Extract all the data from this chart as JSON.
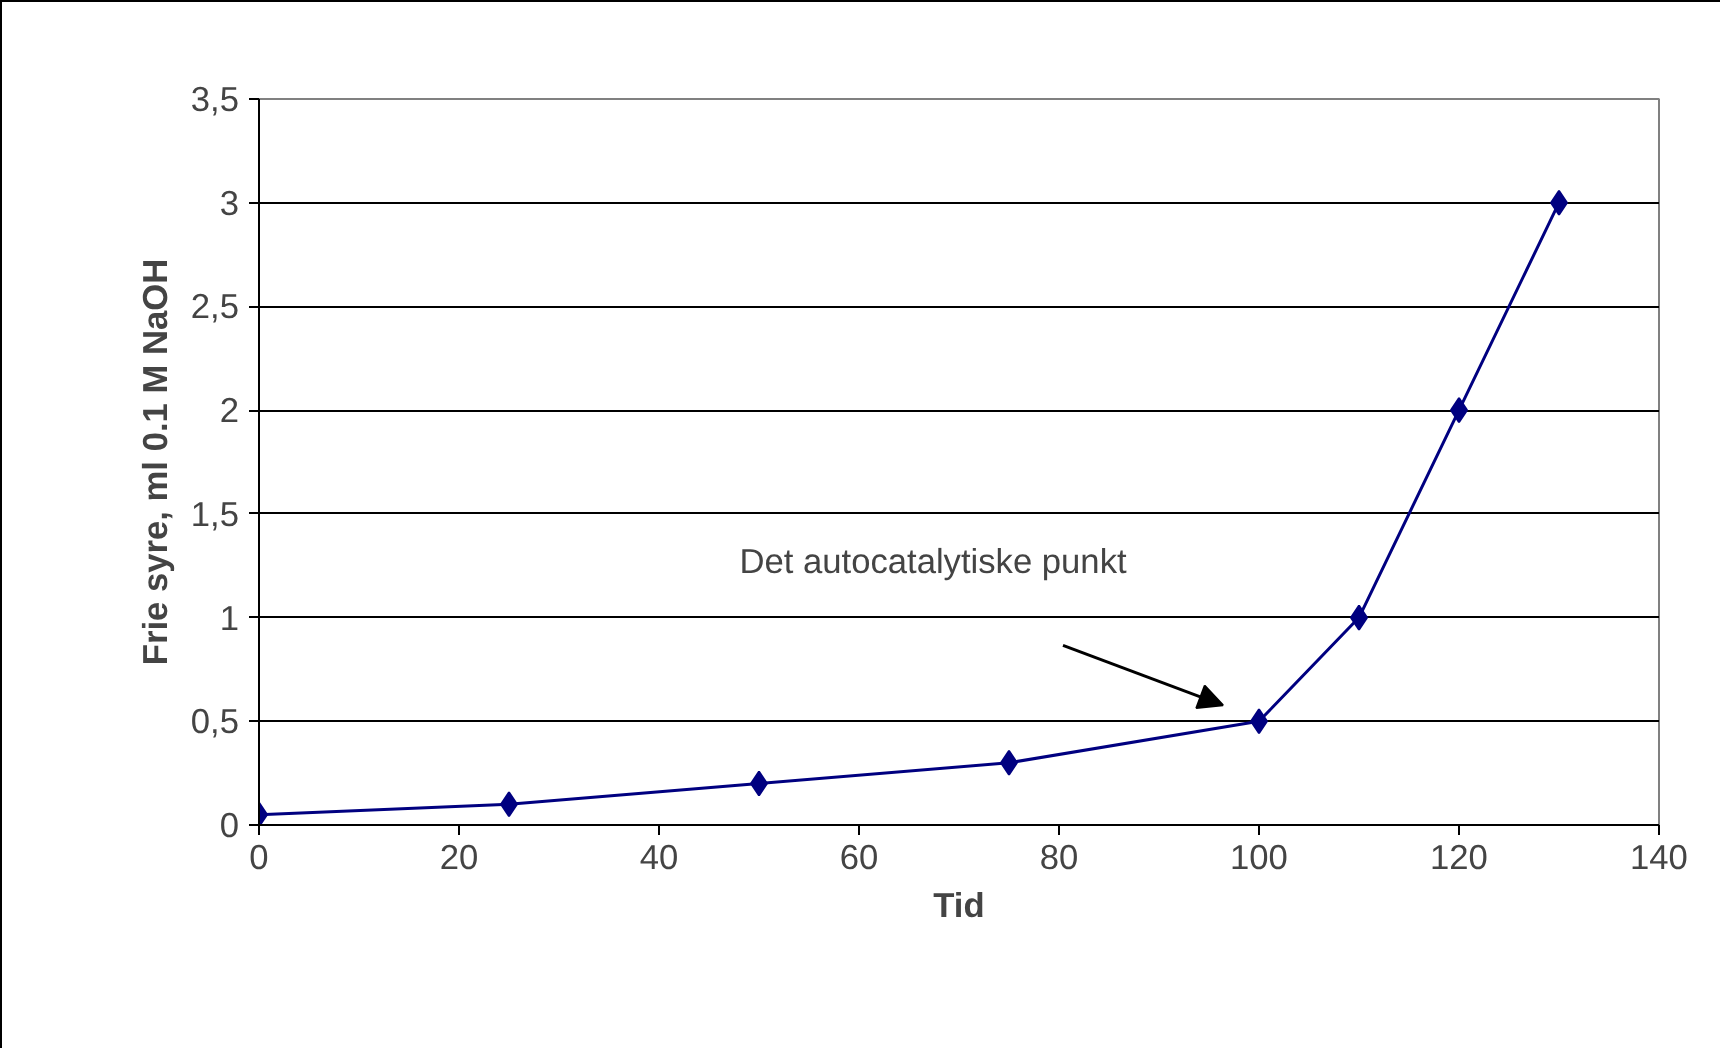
{
  "chart_data": {
    "type": "line",
    "xlabel": "Tid",
    "ylabel": "Frie syre, ml 0.1 M NaOH",
    "x": [
      0,
      25,
      50,
      75,
      100,
      110,
      120,
      130
    ],
    "series": [
      {
        "color": "#000080",
        "values": [
          0.05,
          0.1,
          0.2,
          0.3,
          0.5,
          1,
          2,
          3
        ]
      }
    ],
    "xlim": [
      0,
      140
    ],
    "xticks": [
      0,
      20,
      40,
      60,
      80,
      100,
      120,
      140
    ],
    "ylim": [
      0,
      3.5
    ],
    "yticks": [
      0,
      {
        "value": 0.5,
        "label": "0,5"
      },
      1,
      {
        "value": 1.5,
        "label": "1,5"
      },
      2,
      {
        "value": 2.5,
        "label": "2,5"
      },
      3,
      {
        "value": 3.5,
        "label": "3,5"
      }
    ],
    "grid": "y",
    "marker": "diamond",
    "line_style": "solid",
    "annotations": [
      "Det autocatalytiske punkt"
    ]
  }
}
